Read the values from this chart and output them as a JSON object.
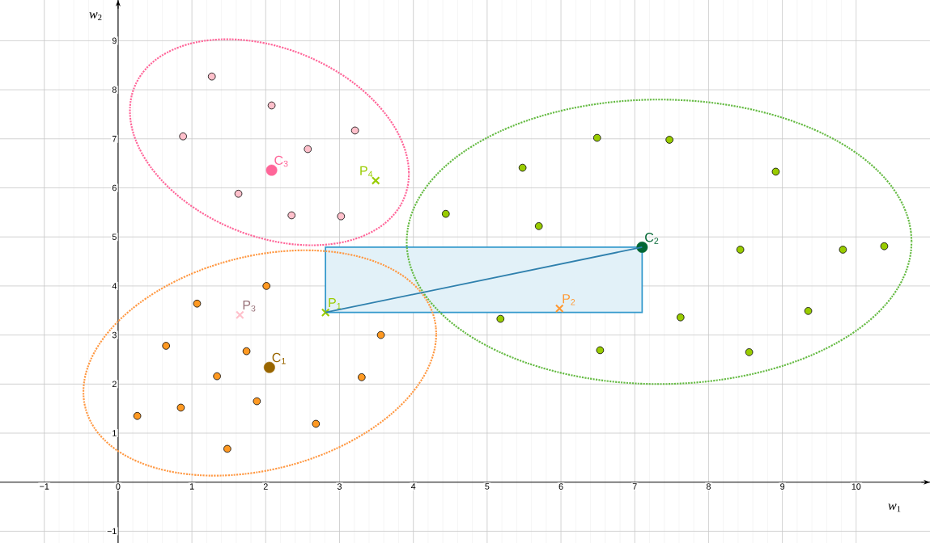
{
  "chart_data": {
    "type": "scatter",
    "xlabel": "*w*$_{1}$",
    "ylabel": "*w*$_{2}$",
    "xlim": [
      -1.6,
      11.0
    ],
    "ylim": [
      -1.24,
      9.83
    ],
    "xticks": [
      {
        "value": -1,
        "label": "−1"
      },
      0,
      1,
      2,
      3,
      4,
      5,
      6,
      7,
      8,
      9,
      10
    ],
    "yticks": [
      {
        "value": -1,
        "label": "−1"
      },
      1,
      2,
      3,
      4,
      5,
      6,
      7,
      8,
      9
    ],
    "grid": true,
    "series": [
      {
        "type": "area",
        "color": "#3399cc",
        "x": [
          2.81,
          7.1,
          7.1,
          2.81,
          2.81
        ],
        "values": [
          3.46,
          3.46,
          4.79,
          4.79,
          3.46
        ]
      },
      {
        "color": "#ff9922",
        "marker": "circle",
        "x": [
          1.07,
          2.01,
          0.65,
          1.74,
          1.34,
          3.56,
          3.3,
          0.26,
          0.85,
          1.88,
          2.68,
          1.48
        ],
        "values": [
          3.64,
          4.0,
          2.78,
          2.67,
          2.16,
          3.0,
          2.14,
          1.35,
          1.52,
          1.65,
          1.19,
          0.68
        ]
      },
      {
        "color": "#99cc00",
        "marker": "circle",
        "x": [
          4.44,
          5.48,
          5.7,
          6.49,
          7.47,
          8.91,
          8.43,
          9.82,
          10.38,
          7.62,
          9.35,
          8.55,
          5.18,
          6.53
        ],
        "values": [
          5.47,
          6.41,
          5.22,
          7.02,
          6.98,
          6.33,
          4.74,
          4.74,
          4.81,
          3.36,
          3.49,
          2.65,
          3.33,
          2.69
        ]
      },
      {
        "color": "#ffc0cb",
        "marker": "circle",
        "x": [
          1.27,
          2.08,
          0.88,
          3.21,
          2.57,
          1.63,
          2.35,
          3.02
        ],
        "values": [
          8.27,
          7.68,
          7.05,
          7.17,
          6.79,
          5.88,
          5.44,
          5.42
        ]
      },
      {
        "name": "C$_{1}$",
        "color": "#996600",
        "marker": "circle",
        "x": [
          2.05
        ],
        "values": [
          2.34
        ]
      },
      {
        "name": "C$_{2}$",
        "color": "#006633",
        "marker": "circle",
        "x": [
          7.1
        ],
        "values": [
          4.79
        ]
      },
      {
        "name": "C$_{3}$",
        "color": "#ff6699",
        "marker": "circle",
        "x": [
          2.08
        ],
        "values": [
          6.36
        ]
      },
      {
        "name": "P$_{1}$",
        "color": "#99cc00",
        "marker": "cross",
        "x": [
          2.81
        ],
        "values": [
          3.46
        ]
      },
      {
        "name": "P$_{2}$",
        "color": "#ff9933",
        "marker": "cross",
        "x": [
          5.98
        ],
        "values": [
          3.54
        ]
      },
      {
        "name": "P$_{3}$",
        "color": "#ffc0cb",
        "marker": "cross",
        "x": [
          1.65
        ],
        "values": [
          3.41
        ]
      },
      {
        "name": "P$_{4}$",
        "color": "#99cc00",
        "marker": "cross",
        "x": [
          3.49
        ],
        "values": [
          6.15
        ]
      }
    ]
  }
}
